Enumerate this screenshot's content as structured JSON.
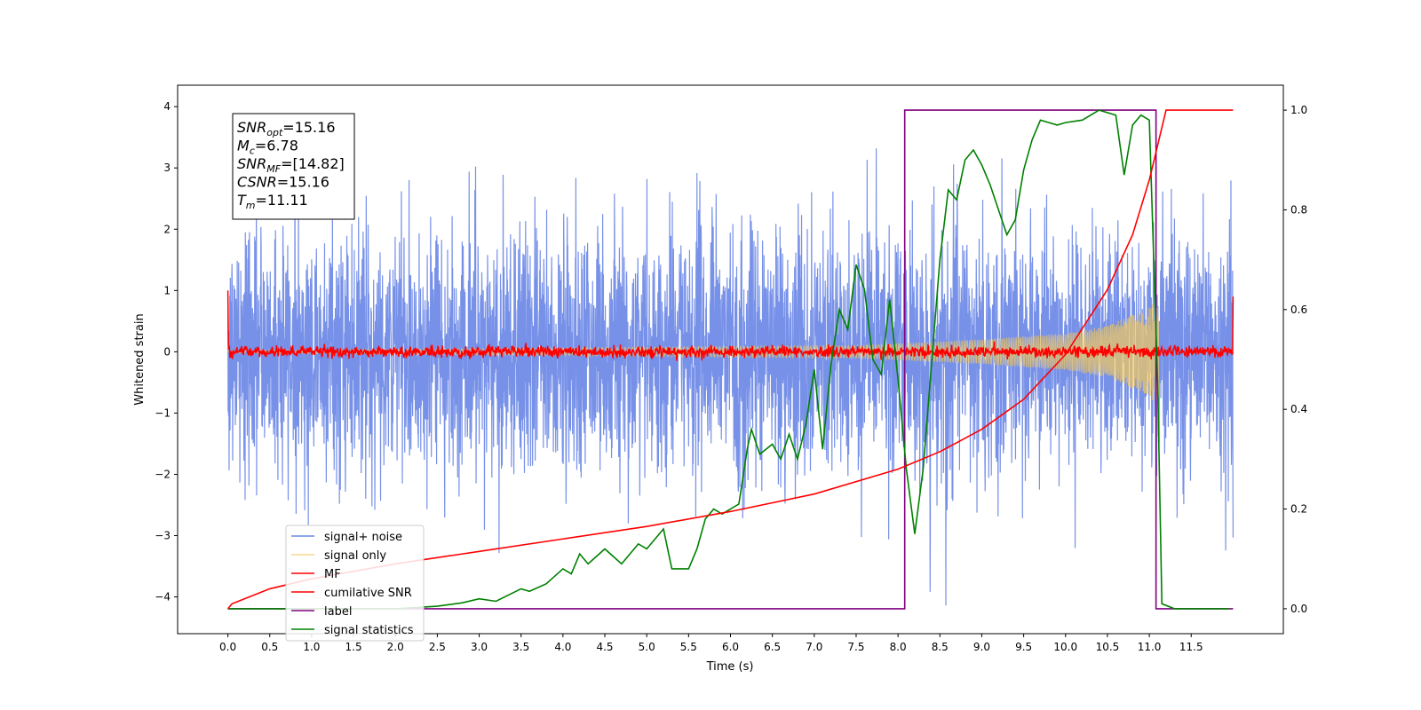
{
  "chart_data": {
    "type": "line",
    "xlabel": "Time (s)",
    "ylabel": "Whitened strain",
    "xlim": [
      -0.6,
      12.6
    ],
    "ylim": [
      -4.6,
      4.35
    ],
    "ylim_right": [
      -0.05,
      1.05
    ],
    "x_ticks": [
      "0.0",
      "0.5",
      "1.0",
      "1.5",
      "2.0",
      "2.5",
      "3.0",
      "3.5",
      "4.0",
      "4.5",
      "5.0",
      "5.5",
      "6.0",
      "6.5",
      "7.0",
      "7.5",
      "8.0",
      "8.5",
      "9.0",
      "9.5",
      "10.0",
      "10.5",
      "11.0",
      "11.5"
    ],
    "y_ticks_left": [
      "4",
      "3",
      "2",
      "1",
      "0",
      "−1",
      "−2",
      "−3",
      "−4"
    ],
    "y_ticks_right": [
      "1.0",
      "0.8",
      "0.6",
      "0.4",
      "0.2",
      "0.0"
    ],
    "legend_position": "lower-left",
    "series": [
      {
        "name": "signal+ noise",
        "color": "#6b88e6",
        "axis": "left",
        "kind": "noise",
        "x_range": [
          0.0,
          12.0
        ],
        "std": 1.0
      },
      {
        "name": "signal only",
        "color": "#f4c95d",
        "axis": "left",
        "kind": "chirp",
        "x_range": [
          0.0,
          11.11
        ],
        "amplitude_envelope": [
          [
            0.0,
            0.02
          ],
          [
            7.5,
            0.1
          ],
          [
            9.0,
            0.2
          ],
          [
            10.0,
            0.3
          ],
          [
            10.5,
            0.42
          ],
          [
            11.0,
            0.72
          ],
          [
            11.11,
            0.95
          ]
        ]
      },
      {
        "name": "MF",
        "color": "#ff0000",
        "axis": "left",
        "kind": "mf",
        "x_range": [
          0.0,
          12.0
        ],
        "start_value": 1.0,
        "end_value": 0.9,
        "noise_std": 0.045
      },
      {
        "name": "cumilative SNR",
        "color": "#ff0000",
        "axis": "right",
        "x": [
          0.0,
          0.05,
          0.5,
          1.0,
          2.0,
          3.0,
          4.0,
          5.0,
          6.0,
          7.0,
          8.0,
          8.5,
          9.0,
          9.5,
          10.0,
          10.5,
          10.8,
          11.0,
          11.1,
          11.2,
          12.0
        ],
        "y": [
          0.0,
          0.01,
          0.04,
          0.06,
          0.09,
          0.115,
          0.14,
          0.165,
          0.195,
          0.23,
          0.28,
          0.315,
          0.36,
          0.42,
          0.51,
          0.64,
          0.75,
          0.86,
          0.93,
          1.0,
          1.0
        ]
      },
      {
        "name": "label",
        "color": "#800080",
        "axis": "right",
        "x": [
          0.0,
          8.08,
          8.08,
          11.08,
          11.08,
          12.0
        ],
        "y": [
          0.0,
          0.0,
          1.0,
          1.0,
          0.0,
          0.0
        ]
      },
      {
        "name": "signal statistics",
        "color": "#008000",
        "axis": "right",
        "x": [
          0.0,
          0.5,
          1.0,
          1.5,
          2.0,
          2.5,
          2.8,
          3.0,
          3.2,
          3.5,
          3.6,
          3.8,
          4.0,
          4.1,
          4.2,
          4.3,
          4.5,
          4.7,
          4.9,
          5.0,
          5.2,
          5.3,
          5.5,
          5.6,
          5.7,
          5.8,
          5.9,
          6.0,
          6.1,
          6.2,
          6.25,
          6.35,
          6.5,
          6.6,
          6.7,
          6.8,
          6.9,
          7.0,
          7.1,
          7.2,
          7.3,
          7.4,
          7.5,
          7.6,
          7.7,
          7.8,
          7.9,
          8.0,
          8.1,
          8.2,
          8.3,
          8.4,
          8.5,
          8.6,
          8.7,
          8.8,
          8.9,
          9.0,
          9.1,
          9.2,
          9.3,
          9.4,
          9.5,
          9.6,
          9.7,
          9.8,
          9.9,
          10.0,
          10.2,
          10.4,
          10.6,
          10.7,
          10.8,
          10.9,
          11.0,
          11.1,
          11.15,
          11.3,
          11.5,
          11.8,
          11.95
        ],
        "y": [
          0.0,
          0.0,
          0.0,
          0.0,
          0.0,
          0.005,
          0.012,
          0.02,
          0.015,
          0.04,
          0.035,
          0.05,
          0.08,
          0.07,
          0.11,
          0.09,
          0.12,
          0.09,
          0.13,
          0.12,
          0.16,
          0.08,
          0.08,
          0.12,
          0.18,
          0.2,
          0.19,
          0.2,
          0.21,
          0.32,
          0.36,
          0.31,
          0.33,
          0.3,
          0.35,
          0.3,
          0.37,
          0.48,
          0.32,
          0.49,
          0.6,
          0.56,
          0.69,
          0.64,
          0.5,
          0.47,
          0.62,
          0.46,
          0.28,
          0.15,
          0.28,
          0.49,
          0.7,
          0.84,
          0.82,
          0.9,
          0.92,
          0.89,
          0.85,
          0.8,
          0.75,
          0.78,
          0.88,
          0.94,
          0.98,
          0.975,
          0.97,
          0.975,
          0.98,
          1.0,
          0.99,
          0.87,
          0.97,
          0.99,
          0.98,
          0.45,
          0.01,
          0.0,
          0.0,
          0.0,
          0.0
        ]
      }
    ],
    "annotation": {
      "lines": [
        {
          "label": "SNR",
          "sub": "opt",
          "value": "=15.16"
        },
        {
          "label": "M",
          "sub": "c",
          "value": "=6.78"
        },
        {
          "label": "SNR",
          "sub": "MF",
          "value": "=[14.82]"
        },
        {
          "label": "CSNR",
          "sub": "",
          "value": "=15.16"
        },
        {
          "label": "T",
          "sub": "m",
          "value": "=11.11"
        }
      ]
    }
  }
}
